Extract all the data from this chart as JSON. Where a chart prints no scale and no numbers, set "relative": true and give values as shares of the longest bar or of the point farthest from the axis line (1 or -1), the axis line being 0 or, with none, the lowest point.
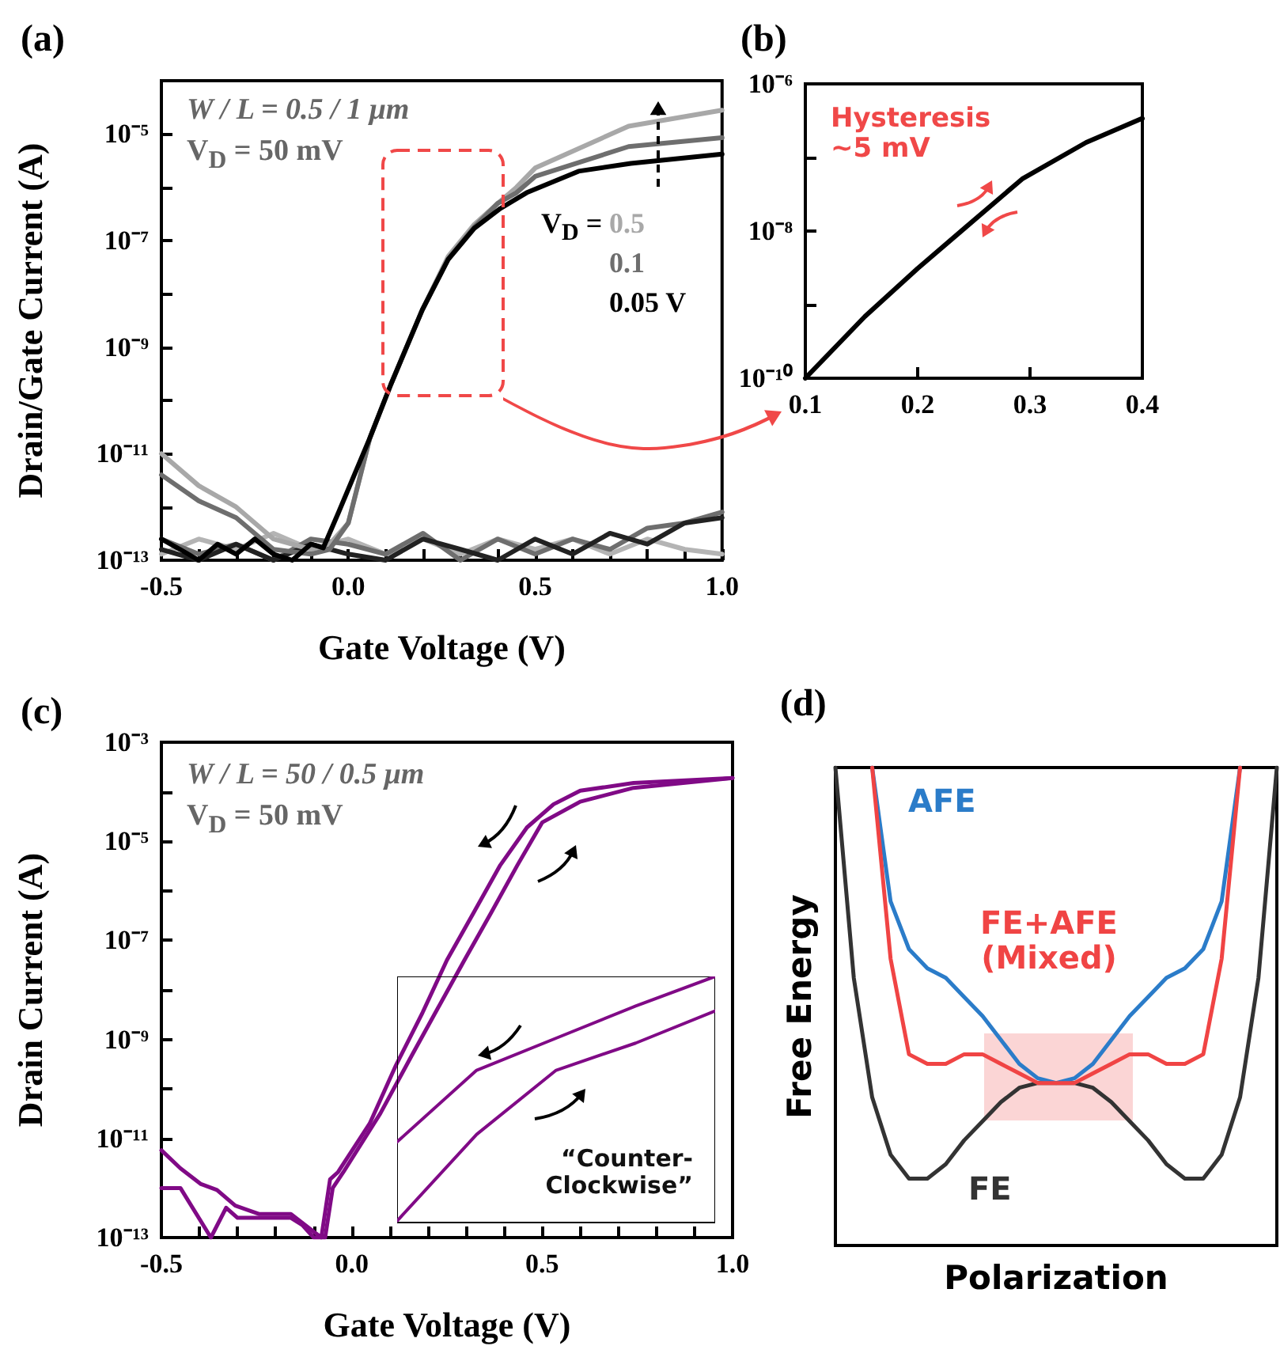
{
  "chart_data": [
    {
      "type": "line",
      "title": "(a)",
      "xlabel": "Gate Voltage (V)",
      "ylabel": "Drain/Gate Current (A)",
      "log": "y",
      "legend": "right",
      "legend_title": "V$_{D}$ =",
      "annotations": [
        "W / L = 0.5 / 1 μm",
        "V$_{D}$ = 50 mV"
      ],
      "xlim": [
        -0.5,
        1.0
      ],
      "xticks": [
        -0.5,
        {
          "value": -0.4,
          "label": null
        },
        {
          "value": -0.3,
          "label": null
        },
        {
          "value": -0.2,
          "label": null
        },
        {
          "value": -0.1,
          "label": null
        },
        {
          "value": 0,
          "label": "0.0"
        },
        {
          "value": 0.1,
          "label": null
        },
        {
          "value": 0.2,
          "label": null
        },
        {
          "value": 0.3,
          "label": null
        },
        {
          "value": 0.4,
          "label": null
        },
        0.5,
        {
          "value": 0.6,
          "label": null
        },
        {
          "value": 0.7,
          "label": null
        },
        {
          "value": 0.8,
          "label": null
        },
        {
          "value": 0.9,
          "label": null
        },
        {
          "value": 1,
          "label": "1.0"
        }
      ],
      "ylim": [
        1e-13,
        0.0001
      ],
      "yticks": [
        {
          "value": 1e-13,
          "label": "10⁻¹³"
        },
        {
          "value": 1e-12,
          "label": null
        },
        {
          "value": 1e-11,
          "label": "10⁻¹¹"
        },
        {
          "value": 1e-10,
          "label": null
        },
        {
          "value": 1e-09,
          "label": "10⁻⁹"
        },
        {
          "value": 1e-08,
          "label": null
        },
        {
          "value": 1e-07,
          "label": "10⁻⁷"
        },
        {
          "value": 1e-06,
          "label": null
        },
        {
          "value": 1e-05,
          "label": "10⁻⁵"
        },
        {
          "value": 0.0001,
          "label": null
        }
      ],
      "series": [
        {
          "color": "#b4b4b4",
          "x": [
            -0.5,
            -0.4,
            -0.3,
            -0.2,
            -0.1,
            0,
            0.1,
            0.2,
            0.3,
            0.4,
            0.5,
            0.6,
            0.7,
            0.8,
            0.9,
            1.0
          ],
          "values": [
            1.3e-13,
            2.5e-13,
            1.6e-13,
            3.2e-13,
            1.6e-13,
            2.5e-13,
            1.3e-13,
            2.5e-13,
            1.3e-13,
            2.5e-13,
            1.6e-13,
            2.5e-13,
            1.3e-13,
            2.5e-13,
            1.6e-13,
            1.3e-13
          ]
        },
        {
          "color": "#6e6e6e",
          "x": [
            -0.5,
            -0.4,
            -0.3,
            -0.2,
            -0.1,
            0,
            0.1,
            0.2,
            0.3,
            0.4,
            0.5,
            0.6,
            0.7,
            0.8,
            0.9,
            1.0
          ],
          "values": [
            2.5e-13,
            1.3e-13,
            2e-13,
            1e-13,
            2.5e-13,
            2e-13,
            1.3e-13,
            3.2e-13,
            1e-13,
            2.5e-13,
            1.3e-13,
            2.5e-13,
            1.6e-13,
            4e-13,
            5e-13,
            8e-13
          ]
        },
        {
          "color": "#222222",
          "x": [
            -0.5,
            -0.4,
            -0.3,
            -0.2,
            -0.1,
            0,
            0.1,
            0.2,
            0.3,
            0.4,
            0.5,
            0.6,
            0.7,
            0.8,
            0.9,
            1.0
          ],
          "values": [
            1.6e-13,
            1e-13,
            2e-13,
            1e-13,
            2e-13,
            1.3e-13,
            1e-13,
            2.5e-13,
            1.6e-13,
            1e-13,
            2.5e-13,
            1.3e-13,
            3.2e-13,
            2e-13,
            5e-13,
            6.3e-13
          ]
        },
        {
          "name": "0.5",
          "color": "#a8a8a8",
          "x": [
            -0.5,
            -0.4,
            -0.3,
            -0.2,
            -0.1,
            -0.05,
            0.0,
            0.058,
            0.114,
            0.198,
            0.267,
            0.337,
            0.4,
            0.45,
            0.5,
            0.75,
            1.0
          ],
          "values": [
            1e-11,
            2.5e-12,
            1e-12,
            2.5e-13,
            1.6e-13,
            2e-13,
            5e-13,
            2e-11,
            2e-10,
            5e-09,
            5e-08,
            2e-07,
            5e-07,
            1e-06,
            2.3e-06,
            1.4e-05,
            2.8e-05
          ]
        },
        {
          "name": "0.1",
          "color": "#6e6e6e",
          "x": [
            -0.5,
            -0.4,
            -0.3,
            -0.2,
            -0.1,
            -0.05,
            0.0,
            0.058,
            0.114,
            0.198,
            0.267,
            0.337,
            0.4,
            0.45,
            0.5,
            0.75,
            1.0
          ],
          "values": [
            4e-12,
            1.3e-12,
            6.3e-13,
            1.6e-13,
            1.3e-13,
            1.6e-13,
            5e-13,
            2e-11,
            2e-10,
            5e-09,
            4.5e-08,
            1.8e-07,
            5e-07,
            7.9e-07,
            1.6e-06,
            5.8e-06,
            8.5e-06
          ]
        },
        {
          "name": "0.05 V",
          "color": "#000000",
          "x": [
            -0.5,
            -0.45,
            -0.4,
            -0.35,
            -0.3,
            -0.25,
            -0.2,
            -0.15,
            -0.1,
            -0.067,
            -0.026,
            0.058,
            0.114,
            0.198,
            0.267,
            0.337,
            0.407,
            0.477,
            0.616,
            0.756,
            1.0
          ],
          "values": [
            2.5e-13,
            1.6e-13,
            1e-13,
            2e-13,
            1.3e-13,
            2.5e-13,
            1.3e-13,
            1e-13,
            2e-13,
            1.7e-13,
            7.9e-13,
            2e-11,
            2e-10,
            5e-09,
            4.4e-08,
            1.7e-07,
            4e-07,
            7.9e-07,
            2e-06,
            2.8e-06,
            4.2e-06
          ]
        }
      ]
    },
    {
      "type": "line",
      "title": "(b)",
      "log": "y",
      "annotations": [
        "Hysteresis ~5 mV"
      ],
      "xlim": [
        0.1,
        0.4
      ],
      "xticks": [
        0.1,
        0.2,
        0.3,
        0.4
      ],
      "ylim": [
        1e-10,
        1e-06
      ],
      "yticks": [
        {
          "value": 1e-10,
          "label": "10⁻¹⁰"
        },
        {
          "value": 1e-09,
          "label": null
        },
        {
          "value": 1e-08,
          "label": "10⁻⁸"
        },
        {
          "value": 1e-07,
          "label": null
        },
        {
          "value": 1e-06,
          "label": "10⁻⁶"
        }
      ],
      "series": [
        {
          "color": "#000000",
          "x": [
            0.1,
            0.153,
            0.2,
            0.242,
            0.293,
            0.35,
            0.4
          ],
          "values": [
            1e-10,
            6.9e-10,
            3.1e-09,
            1.1e-08,
            5.1e-08,
            1.6e-07,
            3.4e-07
          ]
        }
      ]
    },
    {
      "type": "line",
      "title": "(c)",
      "xlabel": "Gate Voltage (V)",
      "ylabel": "Drain Current (A)",
      "log": "y",
      "annotations": [
        "W / L = 50 / 0.5 μm",
        "V$_{D}$ = 50 mV"
      ],
      "xlim": [
        -0.5,
        1.0
      ],
      "xticks": [
        -0.5,
        {
          "value": -0.4,
          "label": null
        },
        {
          "value": -0.3,
          "label": null
        },
        {
          "value": -0.2,
          "label": null
        },
        {
          "value": -0.1,
          "label": null
        },
        {
          "value": 0,
          "label": "0.0"
        },
        {
          "value": 0.1,
          "label": null
        },
        {
          "value": 0.2,
          "label": null
        },
        {
          "value": 0.3,
          "label": null
        },
        {
          "value": 0.4,
          "label": null
        },
        0.5,
        {
          "value": 0.6,
          "label": null
        },
        {
          "value": 0.7,
          "label": null
        },
        {
          "value": 0.8,
          "label": null
        },
        {
          "value": 0.9,
          "label": null
        },
        {
          "value": 1,
          "label": "1.0"
        }
      ],
      "ylim": [
        1e-13,
        0.001
      ],
      "yticks": [
        {
          "value": 1e-13,
          "label": "10⁻¹³"
        },
        {
          "value": 1e-12,
          "label": null
        },
        {
          "value": 1e-11,
          "label": "10⁻¹¹"
        },
        {
          "value": 1e-10,
          "label": null
        },
        {
          "value": 1e-09,
          "label": "10⁻⁹"
        },
        {
          "value": 1e-08,
          "label": null
        },
        {
          "value": 1e-07,
          "label": "10⁻⁷"
        },
        {
          "value": 1e-06,
          "label": null
        },
        {
          "value": 1e-05,
          "label": "10⁻⁵"
        },
        {
          "value": 0.0001,
          "label": null
        },
        {
          "value": 0.001,
          "label": "10⁻³"
        }
      ],
      "series": [
        {
          "color": "#800a86",
          "x": [
            1.0,
            0.74,
            0.6,
            0.53,
            0.46,
            0.39,
            0.32,
            0.25,
            0.186,
            0.116,
            0.047,
            -0.036,
            -0.057,
            -0.08,
            -0.16,
            -0.244,
            -0.306,
            -0.354,
            -0.396,
            -0.45,
            -0.5
          ],
          "values": [
            0.00019,
            0.00015,
            0.000105,
            5.6e-05,
            1.9e-05,
            3.3e-06,
            3.6e-07,
            4e-08,
            3.5e-09,
            3e-10,
            2e-11,
            2.1e-12,
            1.5e-12,
            1e-13,
            3e-13,
            3e-13,
            4.4e-13,
            9.1e-13,
            1.2e-12,
            2.5e-12,
            5.8e-12
          ]
        },
        {
          "color": "#800a86",
          "x": [
            -0.5,
            -0.45,
            -0.37,
            -0.33,
            -0.3,
            -0.16,
            -0.13,
            -0.1,
            -0.07,
            -0.05,
            -0.022,
            0.075,
            0.158,
            0.227,
            0.296,
            0.366,
            0.435,
            0.5,
            0.6,
            0.74,
            1.0
          ],
          "values": [
            1e-12,
            1e-12,
            1e-13,
            4e-13,
            2.5e-13,
            2.5e-13,
            1.8e-13,
            1e-13,
            1e-13,
            1e-12,
            2.1e-12,
            3.2e-11,
            4.8e-10,
            4.4e-09,
            4e-08,
            3.6e-07,
            3.3e-06,
            2.4e-05,
            6.3e-05,
            0.00012,
            0.00019
          ]
        }
      ]
    },
    {
      "type": "line",
      "relative": true,
      "tick_labels": false,
      "annotations": [
        "“Counter-Clockwise”"
      ],
      "categories": [
        null,
        null,
        null,
        null,
        null
      ],
      "series": [
        {
          "color": "#800a86",
          "values": [
            0.33,
            0.62,
            0.75,
            0.88,
            1.0
          ]
        },
        {
          "color": "#800a86",
          "values": [
            0.01,
            0.36,
            0.62,
            0.73,
            0.86
          ]
        }
      ]
    },
    {
      "type": "line",
      "title": "(d)",
      "xlabel": "Polarization",
      "ylabel": "Free Energy",
      "relative": true,
      "tick_labels": false,
      "categories": [
        null,
        null,
        null,
        null,
        null,
        null,
        null,
        null,
        null,
        null,
        null,
        null,
        null,
        null,
        null,
        null,
        null,
        null,
        null,
        null,
        null,
        null,
        null,
        null,
        null
      ],
      "series": [
        {
          "name": "FE",
          "color": "#333333",
          "values": [
            1.0,
            0.56,
            0.31,
            0.19,
            0.14,
            0.14,
            0.17,
            0.22,
            0.26,
            0.3,
            0.33,
            0.34,
            0.34,
            0.34,
            0.33,
            0.3,
            0.26,
            0.22,
            0.17,
            0.14,
            0.14,
            0.19,
            0.31,
            0.56,
            1.0
          ]
        },
        {
          "name": "AFE",
          "color": "#2b7cc9",
          "values": [
            null,
            null,
            1.0,
            0.72,
            0.62,
            0.58,
            0.56,
            0.52,
            0.48,
            0.43,
            0.38,
            0.35,
            0.34,
            0.35,
            0.38,
            0.43,
            0.48,
            0.52,
            0.56,
            0.58,
            0.62,
            0.72,
            1.0,
            null,
            null
          ]
        },
        {
          "name": "FE+AFE (Mixed)",
          "color": "#f04444",
          "values": [
            null,
            null,
            1.0,
            0.6,
            0.4,
            0.38,
            0.38,
            0.4,
            0.4,
            0.38,
            0.36,
            0.34,
            0.34,
            0.34,
            0.36,
            0.38,
            0.4,
            0.4,
            0.38,
            0.38,
            0.4,
            0.6,
            1.0,
            null,
            null
          ]
        }
      ]
    }
  ]
}
